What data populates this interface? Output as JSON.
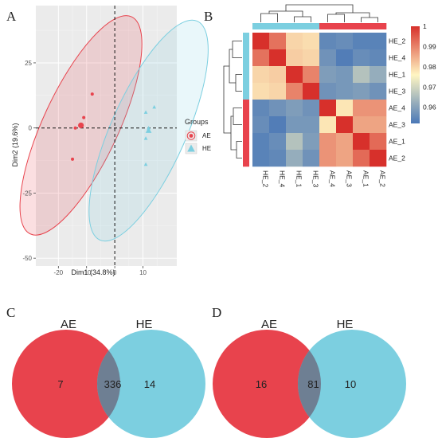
{
  "panels": {
    "a": "A",
    "b": "B",
    "c": "C",
    "d": "D"
  },
  "colors": {
    "ae": "#e8434d",
    "he": "#7ccfe0",
    "overlap": "#6e7f93",
    "heat_low": "#4a78b7",
    "heat_mid": "#fff6c2",
    "heat_high": "#d7302b"
  },
  "chart_data": [
    {
      "type": "scatter",
      "title": "",
      "xlabel": "Dim1 (34.8%)",
      "ylabel": "Dim2 (19.6%)",
      "xlim": [
        -28,
        22
      ],
      "ylim": [
        -53,
        47
      ],
      "xticks": [
        -20,
        -10,
        0,
        10
      ],
      "yticks": [
        -50,
        -25,
        0,
        25
      ],
      "grid": true,
      "legend": {
        "title": "Groups",
        "position": "right",
        "entries": [
          "AE",
          "HE"
        ]
      },
      "series": [
        {
          "name": "AE",
          "marker": "circle",
          "color": "#e8434d",
          "points": [
            [
              -8,
              13
            ],
            [
              -11,
              4
            ],
            [
              -12,
              1
            ],
            [
              -14,
              0
            ],
            [
              -15,
              -12
            ]
          ],
          "centroid": [
            -12,
            1
          ]
        },
        {
          "name": "HE",
          "marker": "triangle",
          "color": "#7ccfe0",
          "points": [
            [
              14,
              8
            ],
            [
              11,
              6
            ],
            [
              11,
              -4
            ],
            [
              11,
              -14
            ],
            [
              12,
              0
            ]
          ],
          "centroid": [
            12,
            -1
          ]
        }
      ]
    },
    {
      "type": "heatmap",
      "rows": [
        "HE_2",
        "HE_4",
        "HE_1",
        "HE_3",
        "AE_4",
        "AE_3",
        "AE_1",
        "AE_2"
      ],
      "cols": [
        "HE_2",
        "HE_4",
        "HE_1",
        "HE_3",
        "AE_4",
        "AE_3",
        "AE_1",
        "AE_2"
      ],
      "row_groups": [
        "HE",
        "HE",
        "HE",
        "HE",
        "AE",
        "AE",
        "AE",
        "AE"
      ],
      "col_groups": [
        "HE",
        "HE",
        "HE",
        "HE",
        "AE",
        "AE",
        "AE",
        "AE"
      ],
      "values": [
        [
          1.0,
          0.992,
          0.98,
          0.979,
          0.955,
          0.956,
          0.954,
          0.954
        ],
        [
          0.992,
          1.0,
          0.981,
          0.98,
          0.957,
          0.953,
          0.956,
          0.955
        ],
        [
          0.98,
          0.981,
          1.0,
          0.99,
          0.959,
          0.958,
          0.966,
          0.962
        ],
        [
          0.979,
          0.98,
          0.99,
          1.0,
          0.957,
          0.958,
          0.959,
          0.957
        ],
        [
          0.955,
          0.957,
          0.959,
          0.957,
          1.0,
          0.978,
          0.988,
          0.988
        ],
        [
          0.956,
          0.953,
          0.958,
          0.958,
          0.978,
          1.0,
          0.986,
          0.986
        ],
        [
          0.954,
          0.956,
          0.966,
          0.959,
          0.988,
          0.986,
          1.0,
          0.993
        ],
        [
          0.954,
          0.955,
          0.962,
          0.957,
          0.988,
          0.986,
          0.993,
          1.0
        ]
      ],
      "colorbar": {
        "range": [
          0.952,
          1.0
        ],
        "ticks": [
          1,
          0.99,
          0.98,
          0.97,
          0.96
        ]
      }
    },
    {
      "type": "venn",
      "sets": [
        "AE",
        "HE"
      ],
      "counts": {
        "only_a": 7,
        "both": 336,
        "only_b": 14
      }
    },
    {
      "type": "venn",
      "sets": [
        "AE",
        "HE"
      ],
      "counts": {
        "only_a": 16,
        "both": 81,
        "only_b": 10
      }
    }
  ]
}
